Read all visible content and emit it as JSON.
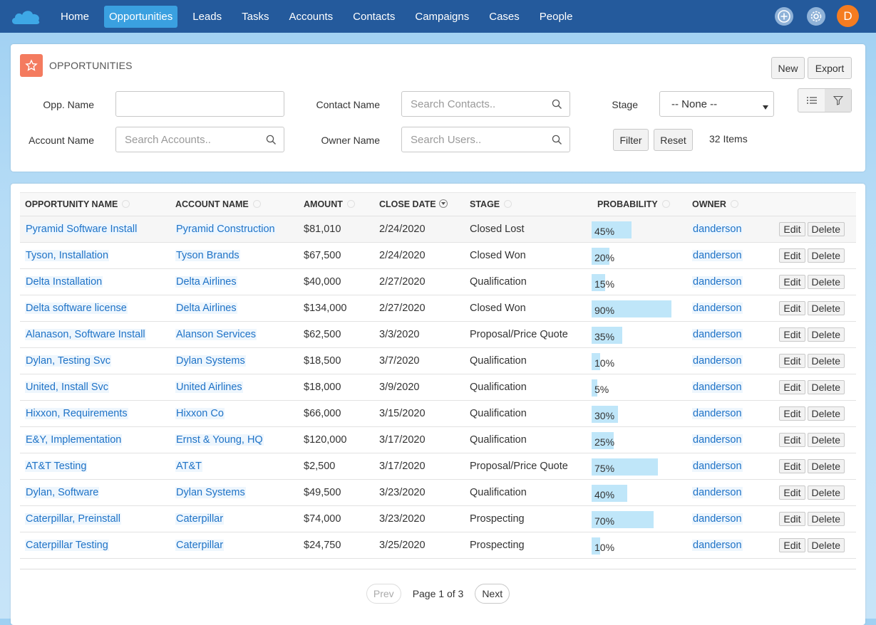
{
  "nav": {
    "items": [
      "Home",
      "Opportunities",
      "Leads",
      "Tasks",
      "Accounts",
      "Contacts",
      "Campaigns",
      "Cases",
      "People"
    ],
    "active": "Opportunities",
    "avatar_letter": "D",
    "icons": [
      "cloud-logo",
      "add-circle-icon",
      "gear-icon"
    ]
  },
  "filter": {
    "title": "OPPORTUNITIES",
    "new_label": "New",
    "export_label": "Export",
    "opp_name_label": "Opp. Name",
    "opp_name_value": "",
    "account_name_label": "Account Name",
    "account_placeholder": "Search Accounts..",
    "contact_name_label": "Contact Name",
    "contact_placeholder": "Search Contacts..",
    "owner_name_label": "Owner Name",
    "owner_placeholder": "Search Users..",
    "stage_label": "Stage",
    "stage_value": "-- None --",
    "filter_label": "Filter",
    "reset_label": "Reset",
    "items_count": "32  Items"
  },
  "table": {
    "columns": [
      "OPPORTUNITY NAME",
      "ACCOUNT NAME",
      "AMOUNT",
      "CLOSE DATE",
      "STAGE",
      "PROBABILITY",
      "OWNER"
    ],
    "edit_label": "Edit",
    "delete_label": "Delete",
    "rows": [
      {
        "name": "Pyramid Software Install",
        "account": "Pyramid Construction",
        "amount": "$81,010",
        "date": "2/24/2020",
        "stage": "Closed Lost",
        "prob": "45%",
        "prob_value": 45,
        "owner": "danderson"
      },
      {
        "name": "Tyson, Installation",
        "account": "Tyson Brands",
        "amount": "$67,500",
        "date": "2/24/2020",
        "stage": "Closed Won",
        "prob": "20%",
        "prob_value": 20,
        "owner": "danderson"
      },
      {
        "name": "Delta Installation",
        "account": "Delta Airlines",
        "amount": "$40,000",
        "date": "2/27/2020",
        "stage": "Qualification",
        "prob": "15%",
        "prob_value": 15,
        "owner": "danderson"
      },
      {
        "name": "Delta software license",
        "account": "Delta Airlines",
        "amount": "$134,000",
        "date": "2/27/2020",
        "stage": "Closed Won",
        "prob": "90%",
        "prob_value": 90,
        "owner": "danderson"
      },
      {
        "name": "Alanason, Software Install",
        "account": "Alanson Services",
        "amount": "$62,500",
        "date": "3/3/2020",
        "stage": "Proposal/Price Quote",
        "prob": "35%",
        "prob_value": 35,
        "owner": "danderson"
      },
      {
        "name": "Dylan, Testing Svc",
        "account": "Dylan Systems",
        "amount": "$18,500",
        "date": "3/7/2020",
        "stage": "Qualification",
        "prob": "10%",
        "prob_value": 10,
        "owner": "danderson"
      },
      {
        "name": "United, Install Svc",
        "account": "United Airlines",
        "amount": "$18,000",
        "date": "3/9/2020",
        "stage": "Qualification",
        "prob": "5%",
        "prob_value": 5,
        "owner": "danderson"
      },
      {
        "name": "Hixxon, Requirements",
        "account": "Hixxon Co",
        "amount": "$66,000",
        "date": "3/15/2020",
        "stage": "Qualification",
        "prob": "30%",
        "prob_value": 30,
        "owner": "danderson"
      },
      {
        "name": "E&Y, Implementation",
        "account": "Ernst & Young, HQ",
        "amount": "$120,000",
        "date": "3/17/2020",
        "stage": "Qualification",
        "prob": "25%",
        "prob_value": 25,
        "owner": "danderson"
      },
      {
        "name": "AT&T Testing",
        "account": "AT&T",
        "amount": "$2,500",
        "date": "3/17/2020",
        "stage": "Proposal/Price Quote",
        "prob": "75%",
        "prob_value": 75,
        "owner": "danderson"
      },
      {
        "name": "Dylan, Software",
        "account": "Dylan Systems",
        "amount": "$49,500",
        "date": "3/23/2020",
        "stage": "Qualification",
        "prob": "40%",
        "prob_value": 40,
        "owner": "danderson"
      },
      {
        "name": "Caterpillar, Preinstall",
        "account": "Caterpillar",
        "amount": "$74,000",
        "date": "3/23/2020",
        "stage": "Prospecting",
        "prob": "70%",
        "prob_value": 70,
        "owner": "danderson"
      },
      {
        "name": "Caterpillar Testing",
        "account": "Caterpillar",
        "amount": "$24,750",
        "date": "3/25/2020",
        "stage": "Prospecting",
        "prob": "10%",
        "prob_value": 10,
        "owner": "danderson"
      }
    ]
  },
  "pager": {
    "prev_label": "Prev",
    "next_label": "Next",
    "page_text": "Page 1 of 3"
  },
  "colors": {
    "nav_bg": "#245a9c",
    "nav_active": "#3aa0e0",
    "link": "#1f73c7",
    "prob_bar": "#bfe6f9",
    "avatar": "#f57c20",
    "header_icon": "#f47b5f"
  }
}
